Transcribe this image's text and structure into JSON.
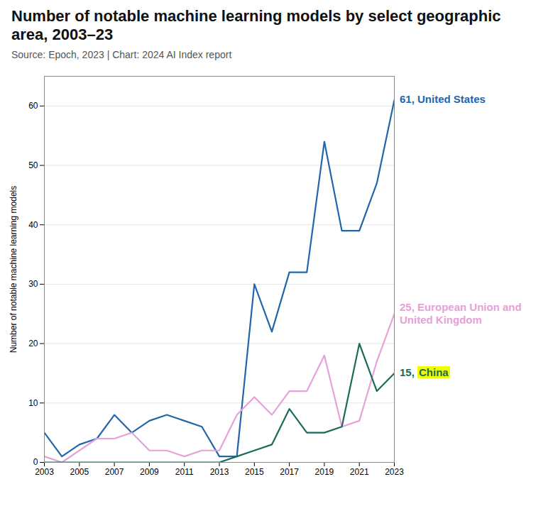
{
  "chart_data": {
    "type": "line",
    "title": "Number of notable machine learning models by select geographic area, 2003–23",
    "subtitle": "Source: Epoch, 2023 | Chart: 2024 AI Index report",
    "ylabel": "Number of notable machine learning models",
    "x": [
      2003,
      2004,
      2005,
      2006,
      2007,
      2008,
      2009,
      2010,
      2011,
      2012,
      2013,
      2014,
      2015,
      2016,
      2017,
      2018,
      2019,
      2020,
      2021,
      2022,
      2023
    ],
    "series": [
      {
        "name": "United States",
        "color": "#2166ac",
        "values": [
          5,
          1,
          3,
          4,
          8,
          5,
          7,
          8,
          7,
          6,
          1,
          1,
          30,
          22,
          32,
          32,
          54,
          39,
          39,
          47,
          61
        ]
      },
      {
        "name": "European Union and United Kingdom",
        "color": "#e8a0d8",
        "values": [
          1,
          0,
          2,
          4,
          4,
          5,
          2,
          2,
          1,
          2,
          2,
          8,
          11,
          8,
          12,
          12,
          18,
          6,
          7,
          17,
          25
        ]
      },
      {
        "name": "China",
        "color": "#1a6b5a",
        "values": [
          0,
          0,
          0,
          0,
          0,
          0,
          0,
          0,
          0,
          0,
          0,
          1,
          2,
          3,
          9,
          5,
          5,
          6,
          20,
          12,
          15
        ]
      }
    ],
    "xlim": [
      2003,
      2023
    ],
    "xticks": [
      2003,
      2005,
      2007,
      2009,
      2011,
      2013,
      2015,
      2017,
      2019,
      2021,
      2023
    ],
    "ylim": [
      0,
      65
    ],
    "yticks": [
      0,
      10,
      20,
      30,
      40,
      50,
      60
    ],
    "grid": "y",
    "annotations": [
      {
        "x": 2023,
        "y": 61,
        "color": "#2166ac",
        "lines": [
          "61, United States"
        ]
      },
      {
        "x": 2023,
        "y": 25,
        "color": "#e8a0d8",
        "lines": [
          "25, European Union and",
          "United Kingdom"
        ]
      },
      {
        "x": 2023,
        "y": 15,
        "color": "#1a6b5a",
        "lines": [
          "15, China"
        ],
        "highlight": "China",
        "highlight_color": "#eeff00"
      }
    ]
  }
}
